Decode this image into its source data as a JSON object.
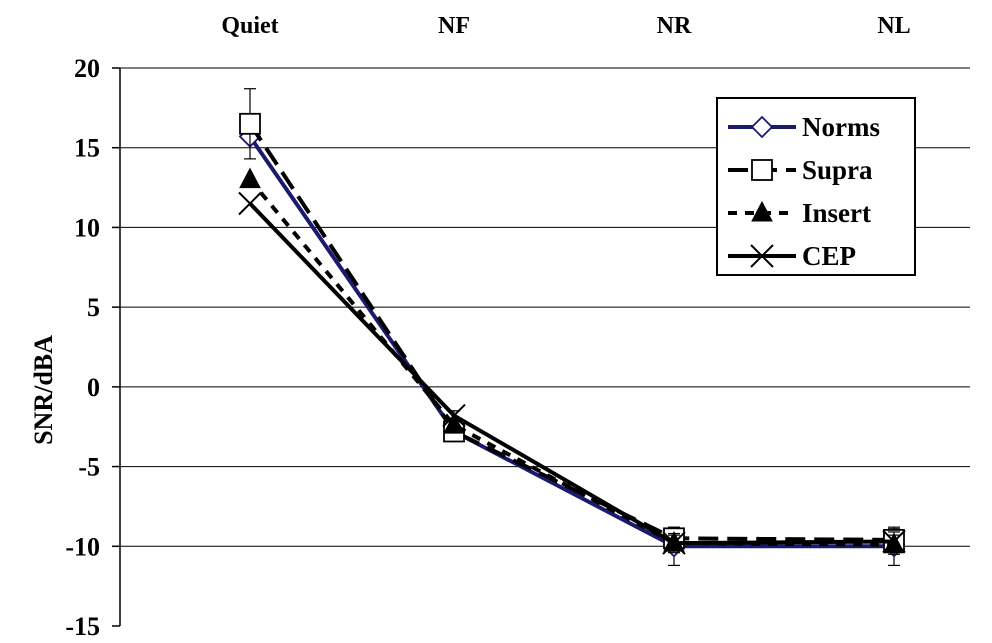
{
  "chart_data": {
    "type": "line",
    "categories": [
      "Quiet",
      "NF",
      "NR",
      "NL"
    ],
    "ylabel": "SNR/dBA",
    "ylim": [
      -15,
      20
    ],
    "yticks": [
      "20",
      "15",
      "10",
      "5",
      "0",
      "-5",
      "-10",
      "-15"
    ],
    "grid": true,
    "legend_position": "top-right",
    "series": [
      {
        "name": "Norms",
        "values": [
          15.7,
          -2.8,
          -10.0,
          -10.0
        ],
        "color": "#1a1a6e",
        "marker": "diamond",
        "dash": "solid",
        "error": [
          0,
          0.6,
          1.2,
          1.2
        ]
      },
      {
        "name": "Supra",
        "values": [
          16.5,
          -2.8,
          -9.5,
          -9.6
        ],
        "color": "#000000",
        "marker": "square",
        "dash": "long",
        "error": [
          2.2,
          0.5,
          0.6,
          0.7
        ]
      },
      {
        "name": "Insert",
        "values": [
          13.0,
          -2.4,
          -9.8,
          -9.9
        ],
        "color": "#000000",
        "marker": "triangle",
        "dash": "short",
        "error": [
          0,
          0.4,
          0.6,
          0.6
        ]
      },
      {
        "name": "CEP",
        "values": [
          11.5,
          -1.8,
          -9.8,
          -9.7
        ],
        "color": "#000000",
        "marker": "cross",
        "dash": "solid",
        "error": [
          0,
          0.3,
          0.5,
          0.6
        ]
      }
    ]
  }
}
